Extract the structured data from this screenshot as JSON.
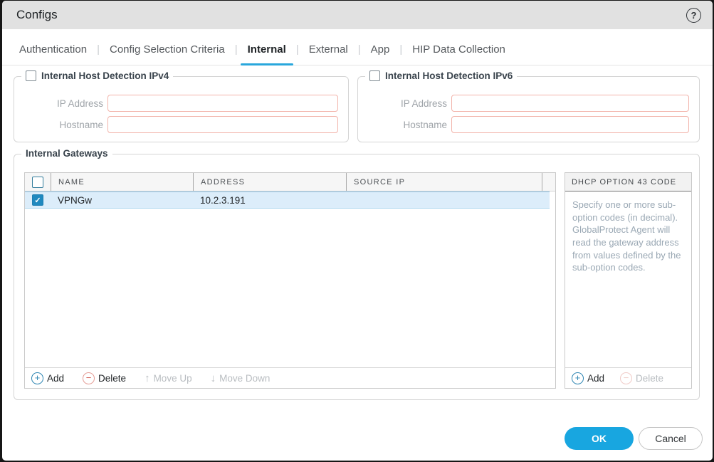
{
  "window": {
    "title": "Configs"
  },
  "icons": {
    "help": "?",
    "add": "+",
    "delete": "−",
    "move_up": "↑",
    "move_down": "↓",
    "check": "✓"
  },
  "tabs_separator": "|",
  "tabs": [
    {
      "label": "Authentication",
      "active": false
    },
    {
      "label": "Config Selection Criteria",
      "active": false
    },
    {
      "label": "Internal",
      "active": true
    },
    {
      "label": "External",
      "active": false
    },
    {
      "label": "App",
      "active": false
    },
    {
      "label": "HIP Data Collection",
      "active": false
    }
  ],
  "ipv4_panel": {
    "title": "Internal Host Detection IPv4",
    "checkbox_checked": false,
    "fields": [
      {
        "label": "IP Address",
        "value": "",
        "placeholder": ""
      },
      {
        "label": "Hostname",
        "value": "",
        "placeholder": ""
      }
    ]
  },
  "ipv6_panel": {
    "title": "Internal Host Detection IPv6",
    "checkbox_checked": false,
    "fields": [
      {
        "label": "IP Address",
        "value": "",
        "placeholder": ""
      },
      {
        "label": "Hostname",
        "value": "",
        "placeholder": ""
      }
    ]
  },
  "gateways_panel": {
    "title": "Internal Gateways",
    "table": {
      "columns": [
        "NAME",
        "ADDRESS",
        "SOURCE IP"
      ],
      "rows": [
        {
          "checked": true,
          "name": "VPNGw",
          "address": "10.2.3.191",
          "source_ip": ""
        }
      ]
    },
    "toolbar": {
      "add": "Add",
      "delete": "Delete",
      "move_up": "Move Up",
      "move_down": "Move Down",
      "move_up_enabled": false,
      "move_down_enabled": false
    },
    "dhcp_panel": {
      "header": "DHCP OPTION 43 CODE",
      "description": "Specify one or more sub-option codes (in decimal). GlobalProtect Agent will read the gateway address from values defined by the sub-option codes.",
      "toolbar": {
        "add": "Add",
        "delete": "Delete",
        "delete_enabled": false
      }
    }
  },
  "footer": {
    "ok": "OK",
    "cancel": "Cancel"
  },
  "colors": {
    "accent_blue": "#18a6e0",
    "tab_underline": "#29a7dc",
    "input_border": "#f2b3aa",
    "selected_row_bg": "#dcedfa",
    "checkbox_checked": "#2089bf",
    "delete_red": "#cf5149",
    "titlebar_bg": "#e1e1e1"
  }
}
